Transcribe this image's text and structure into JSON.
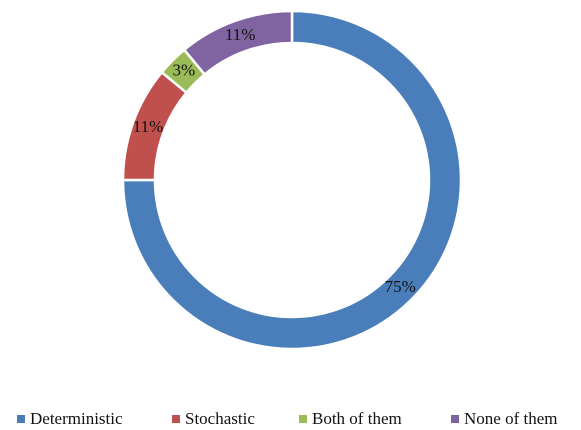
{
  "chart_data": {
    "type": "donut",
    "categories": [
      "Deterministic",
      "Stochastic",
      "Both of them",
      "None of them"
    ],
    "values": [
      75,
      11,
      3,
      11
    ],
    "value_labels": [
      "75%",
      "11%",
      "3%",
      "11%"
    ],
    "colors": [
      "#4a7ebb",
      "#c0504d",
      "#9bbb59",
      "#8064a2"
    ],
    "legend": "bottom"
  }
}
